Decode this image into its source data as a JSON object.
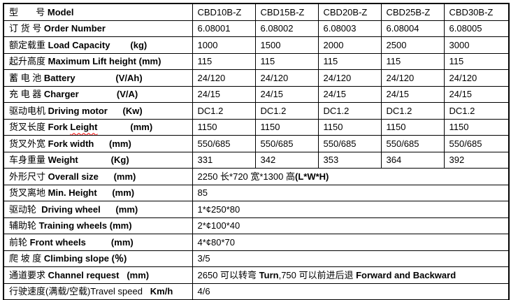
{
  "colors": {
    "background": "#ffffff",
    "border": "#000000",
    "text": "#000000",
    "spellcheck_underline": "#ff0000"
  },
  "table": {
    "rows": [
      {
        "label": {
          "zh": "型       号 ",
          "en": "Model",
          "unit": ""
        },
        "values": [
          "CBD10B-Z",
          "CBD15B-Z",
          "CBD20B-Z",
          "CBD25B-Z",
          "CBD30B-Z"
        ]
      },
      {
        "label": {
          "zh": "订 货 号 ",
          "en": "Order Number",
          "unit": ""
        },
        "values": [
          "6.08001",
          "6.08002",
          "6.08003",
          "6.08004",
          "6.08005"
        ]
      },
      {
        "label": {
          "zh": "额定载重 ",
          "en": "Load Capacity",
          "unit": "        (kg)"
        },
        "values": [
          "1000",
          "1500",
          "2000",
          "2500",
          "3000"
        ]
      },
      {
        "label": {
          "zh": "起升高度 ",
          "en": "Maximum Lift height",
          "unit": " (mm)"
        },
        "values": [
          "115",
          "115",
          "115",
          "115",
          "115"
        ]
      },
      {
        "label": {
          "zh": "蓄 电 池 ",
          "en": "Battery",
          "unit": "                (V/Ah)"
        },
        "values": [
          "24/120",
          "24/120",
          "24/120",
          "24/120",
          "24/120"
        ]
      },
      {
        "label": {
          "zh": "充 电 器 ",
          "en": "Charger",
          "unit": "               (V/A)"
        },
        "values": [
          "24/15",
          "24/15",
          "24/15",
          "24/15",
          "24/15"
        ]
      },
      {
        "label": {
          "zh": "驱动电机 ",
          "en": "Driving motor",
          "unit": "      (Kw)"
        },
        "values": [
          "DC1.2",
          "DC1.2",
          "DC1.2",
          "DC1.2",
          "DC1.2"
        ]
      },
      {
        "label": {
          "zh": "货叉长度 ",
          "en": "Fork ",
          "wavy": "Leight",
          "unit": "             (mm)"
        },
        "values": [
          "1150",
          "1150",
          "1150",
          "1150",
          "1150"
        ]
      },
      {
        "label": {
          "zh": "货叉外宽 ",
          "en": "Fork width",
          "unit": "      (mm)"
        },
        "values": [
          "550/685",
          "550/685",
          "550/685",
          "550/685",
          "550/685"
        ]
      },
      {
        "label": {
          "zh": "车身重量 ",
          "en": "Weight",
          "unit": "             (Kg)"
        },
        "values": [
          "331",
          "342",
          "353",
          "364",
          "392"
        ]
      },
      {
        "label": {
          "zh": "外形尺寸 ",
          "en": "Overall size",
          "unit": "      (mm)"
        },
        "span_value": [
          {
            "t": "2250 长*720 宽*1300 高",
            "b": false
          },
          {
            "t": "(L*W*H)",
            "b": true
          }
        ]
      },
      {
        "label": {
          "zh": "货叉离地 ",
          "en": "Min. Height",
          "unit": "      (mm)"
        },
        "span_value": [
          {
            "t": "85",
            "b": false
          }
        ]
      },
      {
        "label": {
          "zh": "驱动轮  ",
          "en": "Driving wheel",
          "unit": "      (mm)"
        },
        "span_value": [
          {
            "t": "1*¢250*80",
            "b": false
          }
        ]
      },
      {
        "label": {
          "zh": "辅助轮 ",
          "en": "Training wheels",
          "unit": " (mm)"
        },
        "span_value": [
          {
            "t": "2*¢100*40",
            "b": false
          }
        ]
      },
      {
        "label": {
          "zh": "前轮 ",
          "en": "Front wheels",
          "unit": "          (mm)"
        },
        "span_value": [
          {
            "t": "4*¢80*70",
            "b": false
          }
        ]
      },
      {
        "label": {
          "zh": "爬 坡 度 ",
          "en": "Climbing slope (％)",
          "unit": ""
        },
        "span_value": [
          {
            "t": "3/5",
            "b": false
          }
        ]
      },
      {
        "label": {
          "zh": "通道要求 ",
          "en": "Channel request",
          "unit": "   (mm)"
        },
        "span_value": [
          {
            "t": "2650 可以转弯 ",
            "b": false
          },
          {
            "t": "Turn",
            "b": true
          },
          {
            "t": ",750 可以前进后退 ",
            "b": false
          },
          {
            "t": "Forward and Backward",
            "b": true
          }
        ]
      },
      {
        "label": {
          "zh": "行驶速度(满载/空载)Travel speed",
          "en": "",
          "unit": "   Km/h"
        },
        "span_value": [
          {
            "t": "4/6",
            "b": false
          }
        ]
      }
    ]
  }
}
